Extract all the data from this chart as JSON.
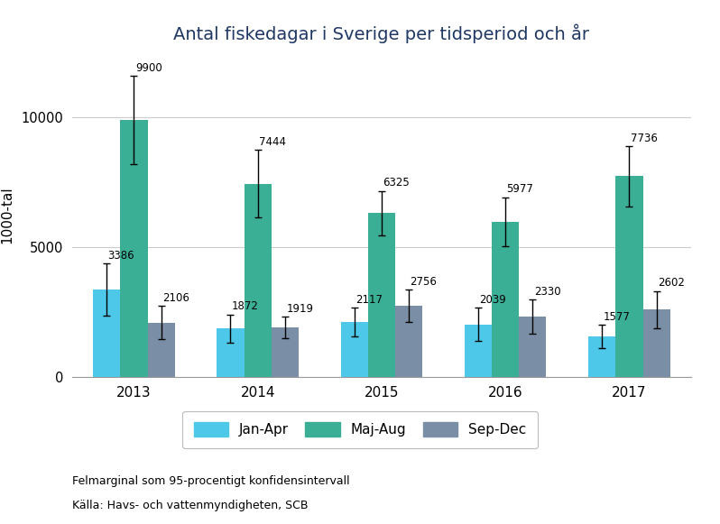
{
  "title": "Antal fiskedagar i Sverige per tidsperiod och år",
  "ylabel": "1000-tal",
  "years": [
    2013,
    2014,
    2015,
    2016,
    2017
  ],
  "jan_apr": [
    3386,
    1872,
    2117,
    2039,
    1577
  ],
  "maj_aug": [
    9900,
    7444,
    6325,
    5977,
    7736
  ],
  "sep_dec": [
    2106,
    1919,
    2756,
    2330,
    2602
  ],
  "jan_apr_err": [
    1000,
    550,
    550,
    650,
    450
  ],
  "maj_aug_err": [
    1700,
    1300,
    850,
    950,
    1150
  ],
  "sep_dec_err": [
    650,
    420,
    620,
    650,
    720
  ],
  "color_jan_apr": "#4DC8E8",
  "color_maj_aug": "#3BAF96",
  "color_sep_dec": "#7A8FA6",
  "legend_labels": [
    "Jan-Apr",
    "Maj-Aug",
    "Sep-Dec"
  ],
  "footnote1": "Felmarginal som 95-procentigt konfidensintervall",
  "footnote2": "Källa: Havs- och vattenmyndigheten, SCB",
  "ylim": [
    0,
    12500
  ],
  "yticks": [
    0,
    5000,
    10000
  ],
  "bar_width": 0.22,
  "title_color": "#1F3864"
}
